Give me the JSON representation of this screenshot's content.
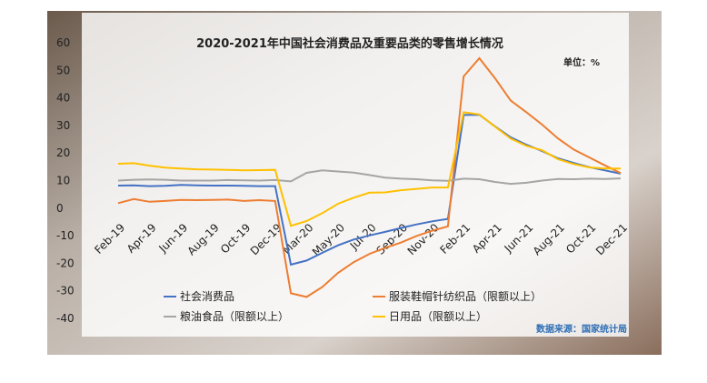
{
  "chart_data": {
    "type": "line",
    "title": "2020-2021年中国社会消费品及重要品类的零售增长情况",
    "unit_note": "单位：%",
    "source_note": "数据来源：国家统计局",
    "categories": [
      "Feb-19",
      null,
      "Apr-19",
      null,
      "Jun-19",
      null,
      "Aug-19",
      null,
      "Oct-19",
      null,
      "Dec-19",
      null,
      "Mar-20",
      null,
      "May-20",
      null,
      "Jul-20",
      null,
      "Sep-20",
      null,
      "Nov-20",
      null,
      "Feb-21",
      null,
      "Apr-21",
      null,
      "Jun-21",
      null,
      "Aug-21",
      null,
      "Oct-21",
      null,
      "Dec-21"
    ],
    "series": [
      {
        "name": "社会消费品",
        "color": "#4472c4",
        "values": [
          8.2,
          8.3,
          8.0,
          8.1,
          8.4,
          8.3,
          8.2,
          8.2,
          8.1,
          8.0,
          8.0,
          -20.5,
          -19.0,
          -16.2,
          -13.5,
          -11.4,
          -9.9,
          -8.6,
          -7.2,
          -5.9,
          -4.8,
          -3.9,
          33.8,
          33.9,
          29.6,
          25.7,
          23.0,
          20.7,
          18.1,
          16.4,
          14.9,
          13.7,
          12.5
        ]
      },
      {
        "name": "服装鞋帽针纺织品（限额以上）",
        "color": "#ed7d31",
        "values": [
          1.8,
          3.3,
          2.3,
          2.6,
          3.0,
          2.9,
          3.0,
          3.1,
          2.6,
          2.9,
          2.6,
          -30.9,
          -32.2,
          -28.6,
          -23.5,
          -19.6,
          -16.6,
          -14.4,
          -12.5,
          -10.1,
          -8.2,
          -6.6,
          47.8,
          54.4,
          47.1,
          39.0,
          34.8,
          30.3,
          25.3,
          21.3,
          18.4,
          15.5,
          12.7
        ]
      },
      {
        "name": "粮油食品（限额以上）",
        "color": "#a5a5a5",
        "values": [
          10.0,
          10.3,
          10.4,
          10.3,
          10.0,
          10.0,
          10.0,
          10.2,
          10.1,
          10.0,
          10.2,
          9.7,
          12.8,
          13.7,
          13.3,
          12.9,
          12.0,
          11.1,
          10.7,
          10.5,
          10.1,
          9.9,
          10.7,
          10.5,
          9.5,
          8.8,
          9.2,
          10.0,
          10.6,
          10.5,
          10.7,
          10.6,
          10.8
        ]
      },
      {
        "name": "日用品（限额以上）",
        "color": "#ffc000",
        "values": [
          16.1,
          16.3,
          15.4,
          14.7,
          14.4,
          14.1,
          14.0,
          13.9,
          13.7,
          13.8,
          13.9,
          -6.4,
          -4.7,
          -1.8,
          1.6,
          3.8,
          5.6,
          5.7,
          6.5,
          7.0,
          7.5,
          7.5,
          34.8,
          34.0,
          29.5,
          25.2,
          22.6,
          21.0,
          17.8,
          16.0,
          14.8,
          14.4,
          14.4
        ]
      }
    ],
    "ylim": [
      -40,
      60
    ],
    "yticks": [
      -40,
      -30,
      -20,
      -10,
      0,
      10,
      20,
      30,
      40,
      50,
      60
    ]
  }
}
